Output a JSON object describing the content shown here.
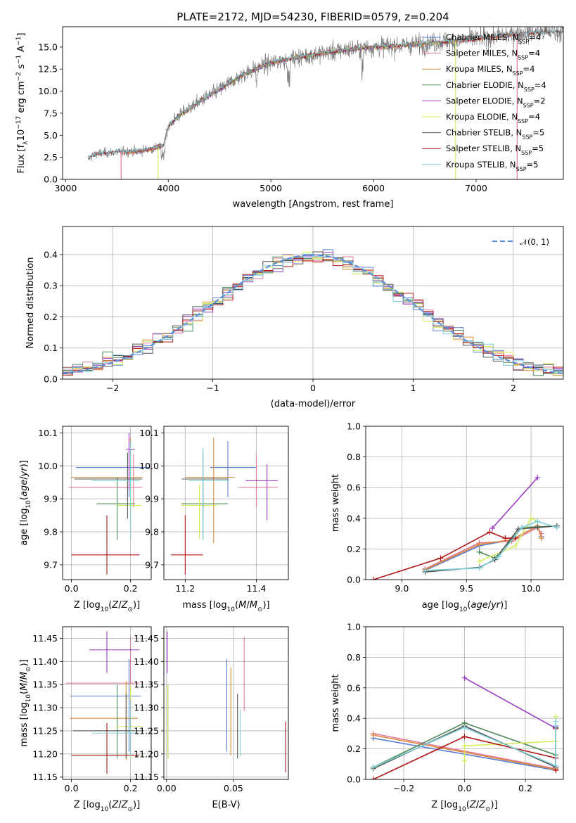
{
  "title": "PLATE=2172, MJD=54230, FIBERID=0579, z=0.204",
  "model_colors": {
    "Chabrier MILES": "#5a7fd6",
    "Salpeter MILES": "#e27a99",
    "Kroupa MILES": "#d98a3a",
    "Chabrier ELODIE": "#4d8a58",
    "Salpeter ELODIE": "#9b3bc4",
    "Kroupa ELODIE": "#d5eb5c",
    "Chabrier STELIB": "#555555",
    "Salpeter STELIB": "#b01818",
    "Kroupa STELIB": "#7ecfd8"
  },
  "chart_data": [
    {
      "id": "spectrum",
      "type": "line",
      "xlabel": "wavelength [Angstrom, rest frame]",
      "ylabel": "Flux [fλ 10^-17 erg cm^-2 s^-1 A^-1]",
      "xlim": [
        2970,
        7850
      ],
      "ylim": [
        0,
        17.3
      ],
      "xticks": [
        3000,
        4000,
        5000,
        6000,
        7000
      ],
      "yticks": [
        0.0,
        2.5,
        5.0,
        7.5,
        10.0,
        12.5,
        15.0
      ],
      "legend_position": "right",
      "legend": [
        {
          "label": "Chabrier MILES, N",
          "sub": "SSP",
          "tail": "=4"
        },
        {
          "label": "Salpeter MILES, N",
          "sub": "SSP",
          "tail": "=4"
        },
        {
          "label": "Kroupa MILES, N",
          "sub": "SSP",
          "tail": "=4"
        },
        {
          "label": "Chabrier ELODIE, N",
          "sub": "SSP",
          "tail": "=4"
        },
        {
          "label": "Salpeter ELODIE, N",
          "sub": "SSP",
          "tail": "=2"
        },
        {
          "label": "Kroupa ELODIE, N",
          "sub": "SSP",
          "tail": "=4"
        },
        {
          "label": "Chabrier STELIB, N",
          "sub": "SSP",
          "tail": "=5"
        },
        {
          "label": "Salpeter STELIB, N",
          "sub": "SSP",
          "tail": "=5"
        },
        {
          "label": "Kroupa STELIB, N",
          "sub": "SSP",
          "tail": "=5"
        }
      ],
      "data_color": "#808080",
      "continuum": [
        [
          3220,
          2.4
        ],
        [
          3300,
          2.9
        ],
        [
          3500,
          3.1
        ],
        [
          3700,
          3.2
        ],
        [
          3850,
          3.5
        ],
        [
          3950,
          3.8
        ],
        [
          4000,
          6.0
        ],
        [
          4100,
          7.2
        ],
        [
          4300,
          8.8
        ],
        [
          4500,
          10.2
        ],
        [
          4700,
          11.7
        ],
        [
          4900,
          12.8
        ],
        [
          5100,
          13.5
        ],
        [
          5300,
          13.9
        ],
        [
          5500,
          14.3
        ],
        [
          5800,
          14.8
        ],
        [
          6000,
          15.0
        ],
        [
          6300,
          15.2
        ],
        [
          6600,
          15.5
        ],
        [
          6900,
          15.8
        ],
        [
          7200,
          16.2
        ],
        [
          7400,
          16.5
        ],
        [
          7850,
          16.8
        ]
      ]
    },
    {
      "id": "residuals",
      "type": "step",
      "xlabel": "(data-model)/error",
      "ylabel": "Normed distribution",
      "xlim": [
        -2.5,
        2.5
      ],
      "ylim": [
        0,
        0.49
      ],
      "xticks": [
        -2,
        -1,
        0,
        1,
        2
      ],
      "yticks": [
        0.0,
        0.1,
        0.2,
        0.3,
        0.4
      ],
      "grid": true,
      "legend": "𝒩(0, 1)",
      "normal_color": "#5b8fd9"
    },
    {
      "id": "age_vs_Z",
      "type": "errorbar",
      "xlabel": "Z [log10(Z/Z⊙)]",
      "ylabel": "age  [log10(age/yr)]",
      "xlim": [
        -0.03,
        0.27
      ],
      "ylim": [
        9.655,
        10.12
      ],
      "xticks": [
        0.0,
        0.2
      ],
      "yticks": [
        9.7,
        9.8,
        9.9,
        10.0,
        10.1
      ],
      "grid": true,
      "points": [
        {
          "model": "Chabrier MILES",
          "x": 0.195,
          "xe": [
            0.18,
            0.07
          ],
          "y": 9.995,
          "ye": [
            0.09,
            0.08
          ]
        },
        {
          "model": "Salpeter MILES",
          "x": 0.21,
          "xe": [
            0.22,
            0.03
          ],
          "y": 9.935,
          "ye": [
            0.06,
            0.1
          ]
        },
        {
          "model": "Kroupa MILES",
          "x": 0.2,
          "xe": [
            0.2,
            0.04
          ],
          "y": 9.965,
          "ye": [
            0.09,
            0.12
          ]
        },
        {
          "model": "Chabrier ELODIE",
          "x": 0.155,
          "xe": [
            0.07,
            0.06
          ],
          "y": 9.885,
          "ye": [
            0.11,
            0.08
          ]
        },
        {
          "model": "Salpeter ELODIE",
          "x": 0.195,
          "xe": [
            0.01,
            0.02
          ],
          "y": 10.05,
          "ye": [
            0.12,
            0.05
          ]
        },
        {
          "model": "Kroupa ELODIE",
          "x": 0.2,
          "xe": [
            0.05,
            0.04
          ],
          "y": 9.88,
          "ye": [
            0.1,
            0.12
          ]
        },
        {
          "model": "Chabrier STELIB",
          "x": 0.19,
          "xe": [
            0.18,
            0.05
          ],
          "y": 9.96,
          "ye": [
            0.12,
            0.08
          ]
        },
        {
          "model": "Salpeter STELIB",
          "x": 0.12,
          "xe": [
            0.12,
            0.11
          ],
          "y": 9.73,
          "ye": [
            0.06,
            0.12
          ]
        },
        {
          "model": "Kroupa STELIB",
          "x": 0.2,
          "xe": [
            0.13,
            0.03
          ],
          "y": 9.955,
          "ye": [
            0.18,
            0.12
          ]
        }
      ]
    },
    {
      "id": "age_vs_mass",
      "type": "errorbar",
      "xlabel": "mass [log10(M/M⊙)]",
      "ylabel": "",
      "xlim": [
        11.14,
        11.49
      ],
      "ylim": [
        9.655,
        10.12
      ],
      "xticks": [
        11.2,
        11.4
      ],
      "yticks": [
        9.7,
        9.8,
        9.9,
        10.0,
        10.1
      ],
      "grid": true,
      "points": [
        {
          "model": "Chabrier MILES",
          "x": 11.32,
          "xe": [
            0.05,
            0.08
          ],
          "y": 9.995,
          "ye": [
            0.09,
            0.08
          ]
        },
        {
          "model": "Salpeter MILES",
          "x": 11.4,
          "xe": [
            0.05,
            0.06
          ],
          "y": 9.935,
          "ye": [
            0.06,
            0.1
          ]
        },
        {
          "model": "Kroupa MILES",
          "x": 11.28,
          "xe": [
            0.08,
            0.06
          ],
          "y": 9.965,
          "ye": [
            0.2,
            0.12
          ]
        },
        {
          "model": "Chabrier ELODIE",
          "x": 11.25,
          "xe": [
            0.06,
            0.07
          ],
          "y": 9.885,
          "ye": [
            0.11,
            0.08
          ]
        },
        {
          "model": "Salpeter ELODIE",
          "x": 11.43,
          "xe": [
            0.06,
            0.03
          ],
          "y": 9.955,
          "ye": [
            0.12,
            0.05
          ]
        },
        {
          "model": "Kroupa ELODIE",
          "x": 11.24,
          "xe": [
            0.05,
            0.05
          ],
          "y": 9.88,
          "ye": [
            0.1,
            0.06
          ]
        },
        {
          "model": "Chabrier STELIB",
          "x": 11.25,
          "xe": [
            0.06,
            0.07
          ],
          "y": 9.96,
          "ye": [
            0.12,
            0.08
          ]
        },
        {
          "model": "Salpeter STELIB",
          "x": 11.2,
          "xe": [
            0.04,
            0.05
          ],
          "y": 9.73,
          "ye": [
            0.06,
            0.12
          ]
        },
        {
          "model": "Kroupa STELIB",
          "x": 11.25,
          "xe": [
            0.04,
            0.07
          ],
          "y": 9.955,
          "ye": [
            0.18,
            0.1
          ]
        }
      ]
    },
    {
      "id": "weight_vs_age",
      "type": "line",
      "xlabel": "age  [log10(age/yr)]",
      "ylabel": "mass weight",
      "xlim": [
        8.72,
        10.25
      ],
      "ylim": [
        0,
        1.0
      ],
      "xticks": [
        9.0,
        9.5,
        10.0
      ],
      "yticks": [
        0.0,
        0.2,
        0.4,
        0.6,
        0.8,
        1.0
      ],
      "grid": true,
      "series": [
        {
          "model": "Chabrier MILES",
          "x": [
            9.18,
            9.6,
            9.85,
            10.05,
            10.08
          ],
          "y": [
            0.06,
            0.22,
            0.26,
            0.35,
            0.28
          ]
        },
        {
          "model": "Salpeter MILES",
          "x": [
            9.18,
            9.6,
            9.85,
            10.05,
            10.08
          ],
          "y": [
            0.07,
            0.24,
            0.25,
            0.34,
            0.3
          ]
        },
        {
          "model": "Kroupa MILES",
          "x": [
            9.18,
            9.6,
            9.85,
            10.05,
            10.08
          ],
          "y": [
            0.065,
            0.23,
            0.26,
            0.35,
            0.27
          ]
        },
        {
          "model": "Chabrier ELODIE",
          "x": [
            9.6,
            9.72,
            9.93,
            10.2
          ],
          "y": [
            0.18,
            0.14,
            0.34,
            0.35
          ]
        },
        {
          "model": "Salpeter ELODIE",
          "x": [
            9.7,
            10.05
          ],
          "y": [
            0.335,
            0.665
          ]
        },
        {
          "model": "Kroupa ELODIE",
          "x": [
            9.6,
            9.88,
            10.0,
            10.05
          ],
          "y": [
            0.12,
            0.22,
            0.4,
            0.38
          ]
        },
        {
          "model": "Chabrier STELIB",
          "x": [
            9.18,
            9.6,
            9.72,
            9.9,
            10.05,
            10.2
          ],
          "y": [
            0.05,
            0.08,
            0.13,
            0.33,
            0.34,
            0.35
          ]
        },
        {
          "model": "Salpeter STELIB",
          "x": [
            8.78,
            9.3,
            9.68,
            9.8,
            9.88
          ],
          "y": [
            0.0,
            0.14,
            0.31,
            0.27,
            0.27
          ]
        },
        {
          "model": "Kroupa STELIB",
          "x": [
            9.18,
            9.6,
            9.75,
            9.93,
            10.05,
            10.2
          ],
          "y": [
            0.06,
            0.075,
            0.15,
            0.34,
            0.38,
            0.34
          ]
        }
      ]
    },
    {
      "id": "mass_vs_Z",
      "type": "errorbar",
      "xlabel": "Z [log10(Z/Z⊙)]",
      "ylabel": "mass [log10(M/M⊙)]",
      "xlim": [
        -0.03,
        0.27
      ],
      "ylim": [
        11.145,
        11.475
      ],
      "xticks": [
        0.0,
        0.2
      ],
      "yticks": [
        11.15,
        11.2,
        11.25,
        11.3,
        11.35,
        11.4,
        11.45
      ],
      "grid": true,
      "points": [
        {
          "model": "Chabrier MILES",
          "x": 0.195,
          "xe": [
            0.2,
            0.04
          ],
          "y": 11.325,
          "ye": [
            0.12,
            0.08
          ]
        },
        {
          "model": "Salpeter MILES",
          "x": 0.2,
          "xe": [
            0.22,
            0.03
          ],
          "y": 11.353,
          "ye": [
            0.06,
            0.1
          ]
        },
        {
          "model": "Kroupa MILES",
          "x": 0.185,
          "xe": [
            0.19,
            0.04
          ],
          "y": 11.277,
          "ye": [
            0.09,
            0.08
          ]
        },
        {
          "model": "Chabrier ELODIE",
          "x": 0.155,
          "xe": [
            0.07,
            0.06
          ],
          "y": 11.25,
          "ye": [
            0.06,
            0.1
          ]
        },
        {
          "model": "Salpeter ELODIE",
          "x": 0.12,
          "xe": [
            0.06,
            0.11
          ],
          "y": 11.425,
          "ye": [
            0.05,
            0.04
          ]
        },
        {
          "model": "Kroupa ELODIE",
          "x": 0.2,
          "xe": [
            0.05,
            0.04
          ],
          "y": 11.26,
          "ye": [
            0.07,
            0.09
          ]
        },
        {
          "model": "Chabrier STELIB",
          "x": 0.185,
          "xe": [
            0.18,
            0.06
          ],
          "y": 11.25,
          "ye": [
            0.06,
            0.08
          ]
        },
        {
          "model": "Salpeter STELIB",
          "x": 0.12,
          "xe": [
            0.12,
            0.11
          ],
          "y": 11.197,
          "ye": [
            0.04,
            0.07
          ]
        },
        {
          "model": "Kroupa STELIB",
          "x": 0.2,
          "xe": [
            0.13,
            0.03
          ],
          "y": 11.245,
          "ye": [
            0.05,
            0.07
          ]
        }
      ]
    },
    {
      "id": "mass_vs_EBV",
      "type": "errorbar",
      "xlabel": "E(B-V)",
      "ylabel": "",
      "xlim": [
        -0.002,
        0.091
      ],
      "ylim": [
        11.145,
        11.475
      ],
      "xticks": [
        0.0,
        0.05
      ],
      "yticks": [
        11.15,
        11.2,
        11.25,
        11.3,
        11.35,
        11.4,
        11.45
      ],
      "grid": true,
      "points": [
        {
          "model": "Chabrier MILES",
          "x": 0.045,
          "xe": [
            0,
            0
          ],
          "y": 11.325,
          "ye": [
            0.12,
            0.08
          ]
        },
        {
          "model": "Salpeter MILES",
          "x": 0.058,
          "xe": [
            0,
            0
          ],
          "y": 11.353,
          "ye": [
            0.06,
            0.1
          ]
        },
        {
          "model": "Kroupa MILES",
          "x": 0.048,
          "xe": [
            0,
            0
          ],
          "y": 11.277,
          "ye": [
            0.08,
            0.11
          ]
        },
        {
          "model": "Chabrier ELODIE",
          "x": 0.001,
          "xe": [
            0,
            0
          ],
          "y": 11.25,
          "ye": [
            0.06,
            0.1
          ]
        },
        {
          "model": "Salpeter ELODIE",
          "x": 0.0005,
          "xe": [
            0,
            0
          ],
          "y": 11.425,
          "ye": [
            0.05,
            0.04
          ]
        },
        {
          "model": "Kroupa ELODIE",
          "x": 0.001,
          "xe": [
            0,
            0
          ],
          "y": 11.26,
          "ye": [
            0.07,
            0.09
          ]
        },
        {
          "model": "Chabrier STELIB",
          "x": 0.053,
          "xe": [
            0,
            0
          ],
          "y": 11.25,
          "ye": [
            0.06,
            0.08
          ]
        },
        {
          "model": "Salpeter STELIB",
          "x": 0.089,
          "xe": [
            0,
            0
          ],
          "y": 11.21,
          "ye": [
            0.05,
            0.06
          ]
        },
        {
          "model": "Kroupa STELIB",
          "x": 0.055,
          "xe": [
            0,
            0
          ],
          "y": 11.245,
          "ye": [
            0.05,
            0.05
          ]
        }
      ]
    },
    {
      "id": "weight_vs_Z",
      "type": "line",
      "xlabel": "Z [log10(Z/Z⊙)]",
      "ylabel": "mass weight",
      "xlim": [
        -0.325,
        0.325
      ],
      "ylim": [
        0,
        1.0
      ],
      "xticks": [
        -0.2,
        0.0,
        0.2
      ],
      "yticks": [
        0.0,
        0.2,
        0.4,
        0.6,
        0.8,
        1.0
      ],
      "grid": true,
      "series": [
        {
          "model": "Chabrier MILES",
          "x": [
            -0.3,
            0.3,
            0.3
          ],
          "y": [
            0.27,
            0.06,
            0.35
          ]
        },
        {
          "model": "Salpeter MILES",
          "x": [
            -0.3,
            0.3,
            0.3
          ],
          "y": [
            0.3,
            0.07,
            0.34
          ]
        },
        {
          "model": "Kroupa MILES",
          "x": [
            -0.3,
            0.3,
            0.3
          ],
          "y": [
            0.29,
            0.065,
            0.33
          ]
        },
        {
          "model": "Chabrier ELODIE",
          "x": [
            -0.3,
            0.0,
            0.3
          ],
          "y": [
            0.08,
            0.37,
            0.16
          ]
        },
        {
          "model": "Salpeter ELODIE",
          "x": [
            0.0,
            0.3
          ],
          "y": [
            0.665,
            0.335
          ]
        },
        {
          "model": "Kroupa ELODIE",
          "x": [
            0.0,
            0.0,
            0.3,
            0.3
          ],
          "y": [
            0.12,
            0.22,
            0.25,
            0.41
          ]
        },
        {
          "model": "Chabrier STELIB",
          "x": [
            -0.3,
            0.0,
            0.3,
            0.3
          ],
          "y": [
            0.07,
            0.35,
            0.08,
            0.34
          ]
        },
        {
          "model": "Salpeter STELIB",
          "x": [
            -0.3,
            0.0,
            0.3,
            0.3
          ],
          "y": [
            0.0,
            0.28,
            0.14,
            0.06
          ]
        },
        {
          "model": "Kroupa STELIB",
          "x": [
            -0.3,
            0.0,
            0.3,
            0.3
          ],
          "y": [
            0.08,
            0.34,
            0.09,
            0.38
          ]
        }
      ]
    }
  ]
}
